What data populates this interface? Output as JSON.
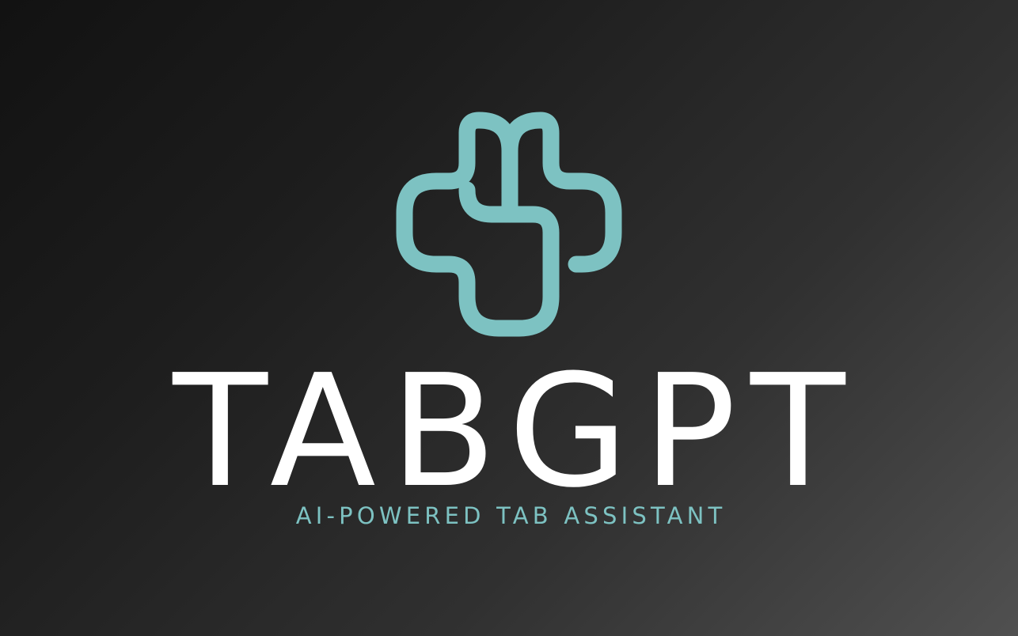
{
  "brand": {
    "name": "TABGPT",
    "tagline": "AI-POWERED TAB ASSISTANT",
    "logo_icon": "interlocking-cross-icon"
  },
  "colors": {
    "accent": "#7dc2c2",
    "text": "#ffffff",
    "background_dark": "#121212",
    "background_light": "#505050"
  }
}
